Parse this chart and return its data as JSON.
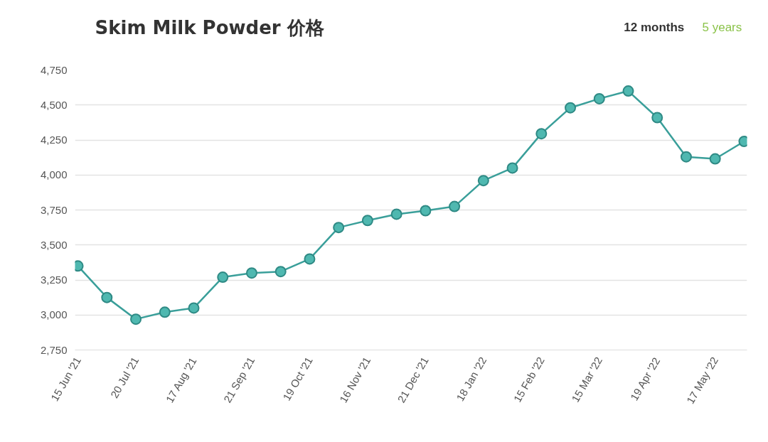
{
  "chart_data": {
    "type": "line",
    "title": "Skim Milk Powder 价格",
    "annotations": [
      "12 months",
      "5 years"
    ],
    "categories": [
      "15 Jun '21",
      null,
      "20 Jul '21",
      null,
      "17 Aug '21",
      null,
      "21 Sep '21",
      null,
      "19 Oct '21",
      null,
      "16 Nov '21",
      null,
      "21 Dec '21",
      null,
      "18 Jan '22",
      null,
      "15 Feb '22",
      null,
      "15 Mar '22",
      null,
      "19 Apr '22",
      null,
      "17 May '22",
      null
    ],
    "series": [
      {
        "color": "#3a9f9a",
        "values": [
          3350,
          3125,
          2970,
          3020,
          3050,
          3270,
          3300,
          3310,
          3400,
          3625,
          3675,
          3720,
          3745,
          3775,
          3960,
          4050,
          4295,
          4480,
          4545,
          4600,
          4410,
          4130,
          4115,
          4240
        ]
      }
    ],
    "ylim": [
      2750,
      4750
    ],
    "yticks": [
      {
        "value": 2750,
        "label": "2,750"
      },
      {
        "value": 3000,
        "label": "3,000"
      },
      {
        "value": 3250,
        "label": "3,250"
      },
      {
        "value": 3500,
        "label": "3,500"
      },
      {
        "value": 3750,
        "label": "3,750"
      },
      {
        "value": 4000,
        "label": "4,000"
      },
      {
        "value": 4250,
        "label": "4,250"
      },
      {
        "value": 4500,
        "label": "4,500"
      },
      {
        "value": 4750,
        "label": "4,750"
      }
    ],
    "grid": "y",
    "marker": "circle",
    "line_style": "solid"
  }
}
